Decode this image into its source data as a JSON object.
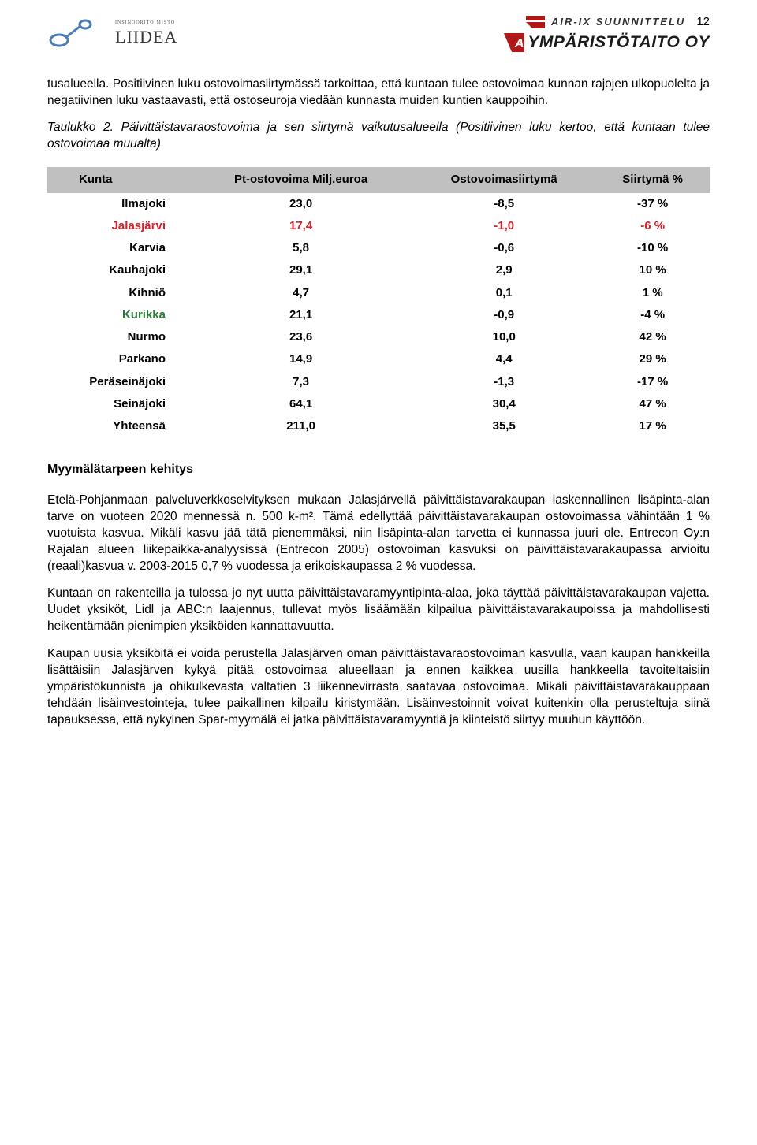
{
  "page_number": "12",
  "logos": {
    "left_name": "LIIDEA",
    "left_sub": "INSINÖÖRITOIMISTO",
    "right_top": "AIR-IX SUUNNITTELU",
    "right_main": "YMPÄRISTÖTAITO OY"
  },
  "paragraphs": {
    "p1": "tusalueella. Positiivinen luku ostovoimasiirtymässä tarkoittaa, että kuntaan tulee ostovoimaa kunnan rajojen ulkopuolelta ja negatiivinen luku vastaavasti, että ostoseuroja viedään kunnasta muiden kuntien kauppoihin.",
    "caption": "Taulukko 2. Päivittäistavaraostovoima ja sen siirtymä vaikutusalueella (Positiivinen luku kertoo, että kuntaan tulee ostovoimaa muualta)",
    "subhead": "Myymälätarpeen kehitys",
    "p2": "Etelä-Pohjanmaan palveluverkkoselvityksen mukaan Jalasjärvellä päivittäistavarakaupan laskennallinen lisäpinta-alan tarve on vuoteen 2020 mennessä n. 500 k-m². Tämä edellyttää päivittäistavarakaupan ostovoimassa vähintään 1 % vuotuista kasvua. Mikäli kasvu jää tätä pienemmäksi, niin lisäpinta-alan tarvetta ei kunnassa juuri ole. Entrecon Oy:n Rajalan alueen liikepaikka-analyysissä (Entrecon 2005) ostovoiman kasvuksi on päivittäistavarakaupassa arvioitu (reaali)kasvua v. 2003-2015 0,7 % vuodessa ja erikoiskaupassa 2 % vuodessa.",
    "p3": "Kuntaan on rakenteilla ja tulossa jo nyt uutta päivittäistavaramyyntipinta-alaa, joka täyttää päivittäistavarakaupan vajetta. Uudet yksiköt, Lidl ja ABC:n laajennus, tullevat myös lisäämään kilpailua päivittäistavarakaupoissa ja mahdollisesti heikentämään pienimpien yksiköiden kannattavuutta.",
    "p4": "Kaupan uusia yksiköitä ei voida perustella Jalasjärven oman päivittäistavaraostovoiman kasvulla, vaan kaupan hankkeilla lisättäisiin Jalasjärven kykyä pitää ostovoimaa alueellaan ja ennen kaikkea uusilla hankkeella tavoiteltaisiin ympäristökunnista ja ohikulkevasta valtatien 3 liikennevirrasta saatavaa ostovoimaa. Mikäli päivittäistavarakauppaan tehdään lisäinvestointeja, tulee paikallinen kilpailu kiristymään. Lisäinvestoinnit voivat kuitenkin olla perusteltuja siinä tapauksessa, että nykyinen Spar-myymälä ei jatka päivittäistavaramyyntiä ja kiinteistö siirtyy muuhun käyttöön."
  },
  "table": {
    "headers": [
      "Kunta",
      "Pt-ostovoima Milj.euroa",
      "Ostovoimasiirtymä",
      "Siirtymä %"
    ],
    "header_bg": "#c0c0c0",
    "rows": [
      {
        "kunta": "Ilmajoki",
        "pt": "23,0",
        "siirt": "-8,5",
        "pct": "-37 %",
        "style": "normal"
      },
      {
        "kunta": "Jalasjärvi",
        "pt": "17,4",
        "siirt": "-1,0",
        "pct": "-6 %",
        "style": "red"
      },
      {
        "kunta": "Karvia",
        "pt": "5,8",
        "siirt": "-0,6",
        "pct": "-10 %",
        "style": "normal"
      },
      {
        "kunta": "Kauhajoki",
        "pt": "29,1",
        "siirt": "2,9",
        "pct": "10 %",
        "style": "normal"
      },
      {
        "kunta": "Kihniö",
        "pt": "4,7",
        "siirt": "0,1",
        "pct": "1 %",
        "style": "normal"
      },
      {
        "kunta": "Kurikka",
        "pt": "21,1",
        "siirt": "-0,9",
        "pct": "-4 %",
        "style": "green"
      },
      {
        "kunta": "Nurmo",
        "pt": "23,6",
        "siirt": "10,0",
        "pct": "42 %",
        "style": "normal"
      },
      {
        "kunta": "Parkano",
        "pt": "14,9",
        "siirt": "4,4",
        "pct": "29 %",
        "style": "normal"
      },
      {
        "kunta": "Peräseinäjoki",
        "pt": "7,3",
        "siirt": "-1,3",
        "pct": "-17 %",
        "style": "normal"
      },
      {
        "kunta": "Seinäjoki",
        "pt": "64,1",
        "siirt": "30,4",
        "pct": "47 %",
        "style": "normal"
      },
      {
        "kunta": "Yhteensä",
        "pt": "211,0",
        "siirt": "35,5",
        "pct": "17 %",
        "style": "normal"
      }
    ],
    "colors": {
      "red": "#d4212a",
      "green": "#2a7a3a",
      "normal": "#000000"
    }
  }
}
